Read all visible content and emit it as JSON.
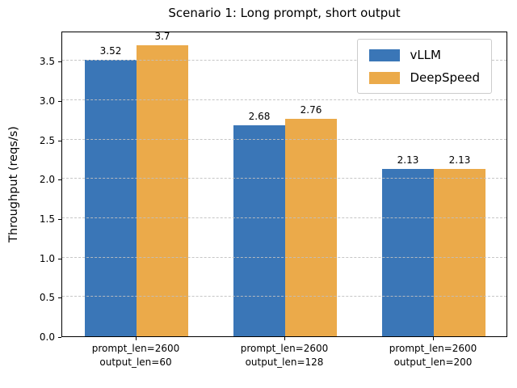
{
  "chart_data": {
    "type": "bar",
    "title": "Scenario 1: Long prompt, short output",
    "xlabel": "",
    "ylabel": "Throughput (reqs/s)",
    "categories": [
      "prompt_len=2600\noutput_len=60",
      "prompt_len=2600\noutput_len=128",
      "prompt_len=2600\noutput_len=200"
    ],
    "series": [
      {
        "name": "vLLM",
        "color": "#3a76b7",
        "values": [
          3.52,
          2.68,
          2.13
        ]
      },
      {
        "name": "DeepSpeed",
        "color": "#ebaa4a",
        "values": [
          3.7,
          2.76,
          2.13
        ]
      }
    ],
    "ylim": [
      0,
      3.885
    ],
    "yticks": [
      0,
      0.5,
      1,
      1.5,
      2,
      2.5,
      3,
      3.5
    ],
    "grid": "horizontal dashed",
    "legend_position": "upper right",
    "bar_value_labels": true,
    "frame_color": "#000000",
    "grid_color": "#c0c0c0"
  }
}
